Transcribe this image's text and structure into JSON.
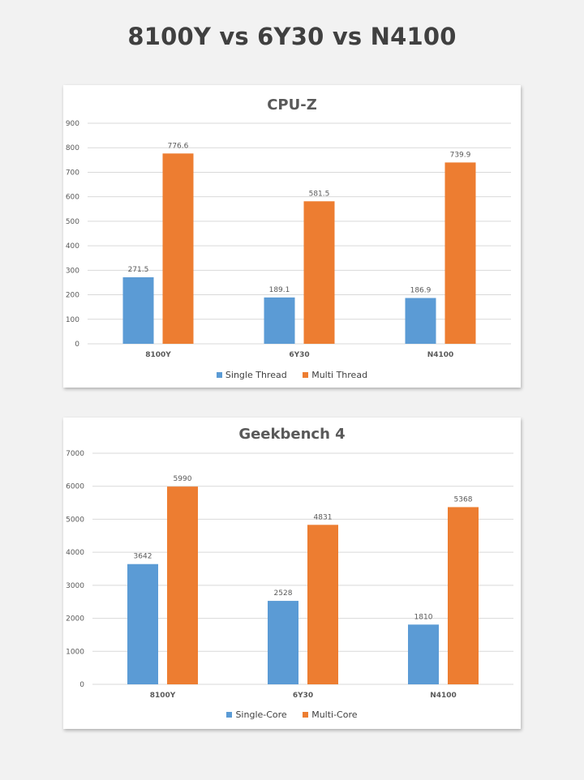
{
  "page_title": "8100Y vs 6Y30 vs N4100",
  "colors": {
    "series1": "#5b9bd5",
    "series2": "#ed7d31",
    "grid": "#d9d9d9",
    "axis_text": "#595959"
  },
  "chart_data": [
    {
      "type": "bar",
      "title": "CPU-Z",
      "categories": [
        "8100Y",
        "6Y30",
        "N4100"
      ],
      "series": [
        {
          "name": "Single Thread",
          "values": [
            271.5,
            189.1,
            186.9
          ],
          "labels": [
            "271.5",
            "189.1",
            "186.9"
          ]
        },
        {
          "name": "Multi Thread",
          "values": [
            776.6,
            581.5,
            739.9
          ],
          "labels": [
            "776.6",
            "581.5",
            "739.9"
          ]
        }
      ],
      "ylim": [
        0,
        900
      ],
      "yticks": [
        0,
        100,
        200,
        300,
        400,
        500,
        600,
        700,
        800,
        900
      ],
      "grid": true,
      "legend": "bottom",
      "xlabel": "",
      "ylabel": ""
    },
    {
      "type": "bar",
      "title": "Geekbench 4",
      "categories": [
        "8100Y",
        "6Y30",
        "N4100"
      ],
      "series": [
        {
          "name": "Single-Core",
          "values": [
            3642,
            2528,
            1810
          ],
          "labels": [
            "3642",
            "2528",
            "1810"
          ]
        },
        {
          "name": "Multi-Core",
          "values": [
            5990,
            4831,
            5368
          ],
          "labels": [
            "5990",
            "4831",
            "5368"
          ]
        }
      ],
      "ylim": [
        0,
        7000
      ],
      "yticks": [
        0,
        1000,
        2000,
        3000,
        4000,
        5000,
        6000,
        7000
      ],
      "grid": true,
      "legend": "bottom",
      "xlabel": "",
      "ylabel": ""
    }
  ]
}
